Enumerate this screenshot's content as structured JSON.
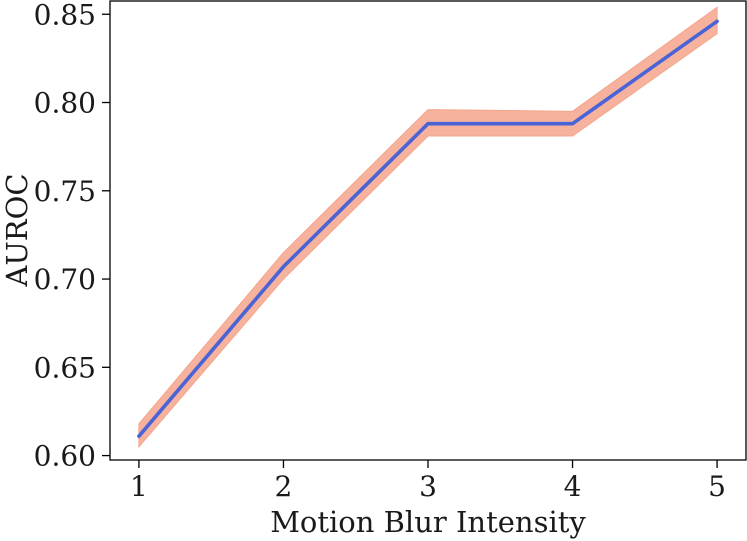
{
  "chart_data": {
    "type": "line",
    "xlabel": "Motion Blur Intensity",
    "ylabel": "AUROC",
    "x": [
      1,
      2,
      3,
      4,
      5
    ],
    "series": [
      {
        "values": [
          0.611,
          0.707,
          0.788,
          0.788,
          0.846
        ],
        "lower": [
          0.605,
          0.7,
          0.781,
          0.781,
          0.839
        ],
        "upper": [
          0.618,
          0.715,
          0.796,
          0.795,
          0.854
        ],
        "color": "#4a63d6",
        "band_color": "#f4a58c"
      }
    ],
    "xticks": [
      "1",
      "2",
      "3",
      "4",
      "5"
    ],
    "yticks": [
      "0.60",
      "0.65",
      "0.70",
      "0.75",
      "0.80",
      "0.85"
    ],
    "xlim": [
      0.8,
      5.2
    ],
    "ylim": [
      0.5975,
      0.8575
    ],
    "grid": false,
    "legend": "none"
  }
}
